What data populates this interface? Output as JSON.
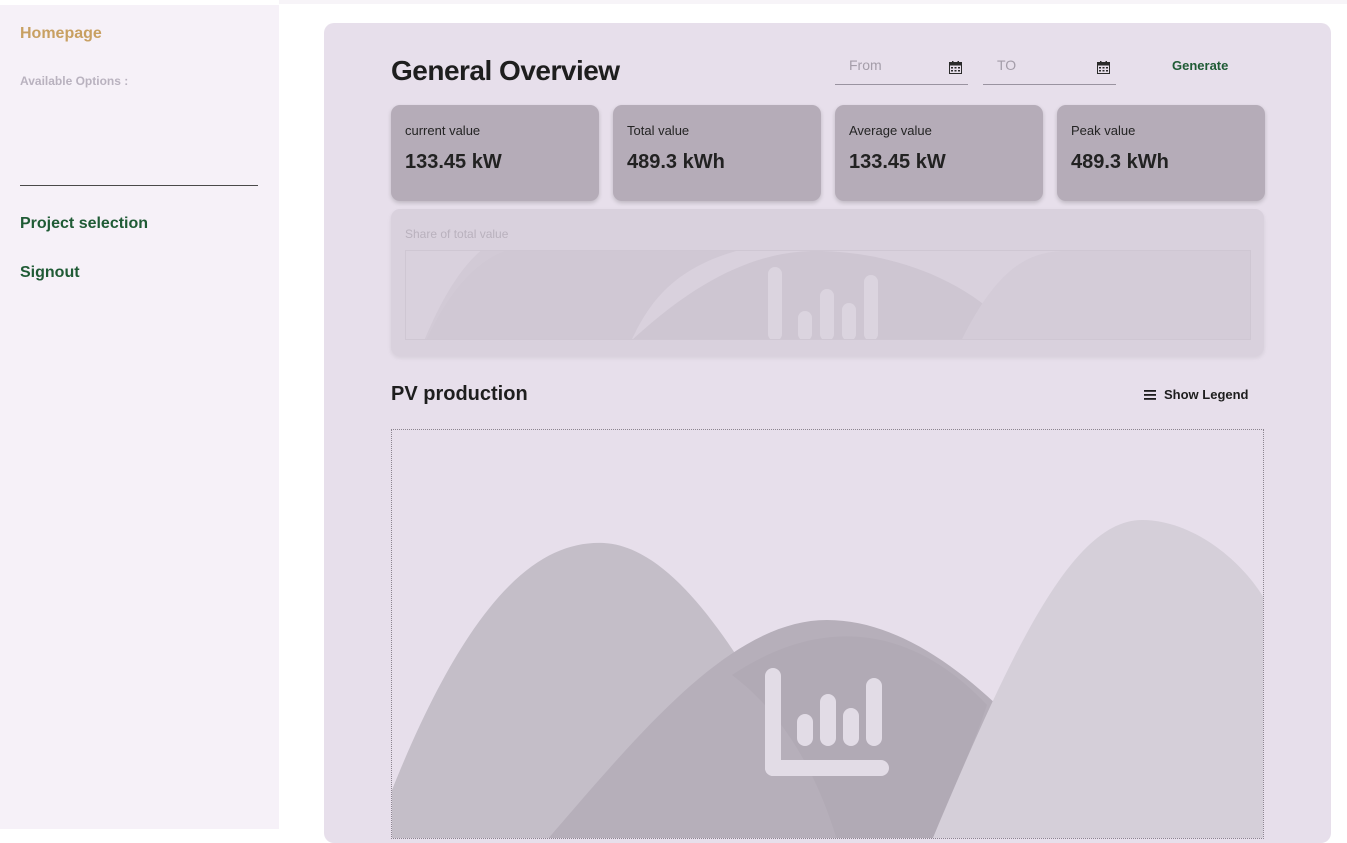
{
  "sidebar": {
    "home": "Homepage",
    "available_options": "Available Options :",
    "links": [
      "Project selection",
      "Signout"
    ]
  },
  "header": {
    "title": "General Overview",
    "from_placeholder": "From",
    "to_placeholder": "TO",
    "generate_label": "Generate"
  },
  "kpis": [
    {
      "label": "current value",
      "value": "133.45 kW"
    },
    {
      "label": "Total value",
      "value": "489.3 kWh"
    },
    {
      "label": "Average value",
      "value": "133.45 kW"
    },
    {
      "label": "Peak value",
      "value": "489.3 kWh"
    }
  ],
  "share_card": {
    "label": "Share of total value"
  },
  "pv": {
    "title": "PV production",
    "legend_label": "Show Legend"
  },
  "colors": {
    "accent_green": "#1f5b35",
    "home_gold": "#c8a062",
    "panel": "#e7dfeb",
    "kpi": "#b5acb8"
  }
}
